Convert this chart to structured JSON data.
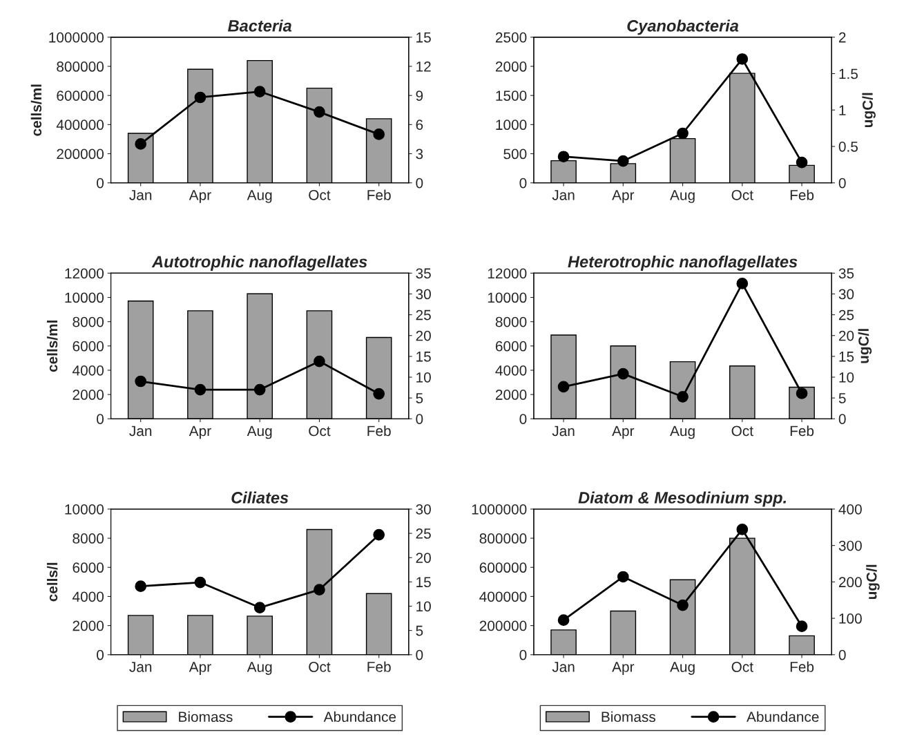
{
  "chart_data": [
    {
      "type": "bar",
      "title": "Bacteria",
      "ylabel": "cells/ml",
      "categories": [
        "Jan",
        "Apr",
        "Aug",
        "Oct",
        "Feb"
      ],
      "ylim": [
        0,
        1000000
      ],
      "yticks": [
        0,
        200000,
        400000,
        600000,
        800000,
        1000000
      ],
      "y2lim": [
        0,
        15
      ],
      "y2ticks": [
        0,
        3,
        6,
        9,
        12,
        15
      ],
      "grid": false,
      "series": [
        {
          "color": "#a0a0a0",
          "values": [
            340000,
            780000,
            840000,
            650000,
            440000
          ]
        },
        {
          "type": "line",
          "axis": "y2",
          "color": "#000000",
          "marker": "circle",
          "values": [
            4.0,
            8.8,
            9.4,
            7.3,
            5.0
          ]
        }
      ]
    },
    {
      "type": "bar",
      "title": "Cyanobacteria",
      "y2label": "ugC/l",
      "categories": [
        "Jan",
        "Apr",
        "Aug",
        "Oct",
        "Feb"
      ],
      "ylim": [
        0,
        2500
      ],
      "yticks": [
        0,
        500,
        1000,
        1500,
        2000,
        2500
      ],
      "y2lim": [
        0,
        2
      ],
      "y2ticks": [
        0,
        0.5,
        1,
        1.5,
        2
      ],
      "grid": false,
      "series": [
        {
          "color": "#a0a0a0",
          "values": [
            380,
            330,
            760,
            1880,
            300
          ]
        },
        {
          "type": "line",
          "axis": "y2",
          "color": "#000000",
          "marker": "circle",
          "values": [
            0.36,
            0.3,
            0.68,
            1.7,
            0.28
          ]
        }
      ]
    },
    {
      "type": "bar",
      "title": "Autotrophic nanoflagellates",
      "ylabel": "cells/ml",
      "categories": [
        "Jan",
        "Apr",
        "Aug",
        "Oct",
        "Feb"
      ],
      "ylim": [
        0,
        12000
      ],
      "yticks": [
        0,
        2000,
        4000,
        6000,
        8000,
        10000,
        12000
      ],
      "y2lim": [
        0,
        35
      ],
      "y2ticks": [
        0,
        5,
        10,
        15,
        20,
        25,
        30,
        35
      ],
      "grid": false,
      "series": [
        {
          "color": "#a0a0a0",
          "values": [
            9700,
            8900,
            10300,
            8900,
            6700
          ]
        },
        {
          "type": "line",
          "axis": "y2",
          "color": "#000000",
          "marker": "circle",
          "values": [
            9,
            7,
            7,
            13.8,
            6
          ]
        }
      ]
    },
    {
      "type": "bar",
      "title": "Heterotrophic nanoflagellates",
      "y2label": "ugC/l",
      "categories": [
        "Jan",
        "Apr",
        "Aug",
        "Oct",
        "Feb"
      ],
      "ylim": [
        0,
        12000
      ],
      "yticks": [
        0,
        2000,
        4000,
        6000,
        8000,
        10000,
        12000
      ],
      "y2lim": [
        0,
        35
      ],
      "y2ticks": [
        0,
        5,
        10,
        15,
        20,
        25,
        30,
        35
      ],
      "grid": false,
      "series": [
        {
          "color": "#a0a0a0",
          "values": [
            6900,
            6000,
            4700,
            4350,
            2600
          ]
        },
        {
          "type": "line",
          "axis": "y2",
          "color": "#000000",
          "marker": "circle",
          "values": [
            7.7,
            10.8,
            5.3,
            32.5,
            6.1
          ]
        }
      ]
    },
    {
      "type": "bar",
      "title": "Ciliates",
      "ylabel": "cells/l",
      "categories": [
        "Jan",
        "Apr",
        "Aug",
        "Oct",
        "Feb"
      ],
      "ylim": [
        0,
        10000
      ],
      "yticks": [
        0,
        2000,
        4000,
        6000,
        8000,
        10000
      ],
      "y2lim": [
        0,
        30
      ],
      "y2ticks": [
        0,
        5,
        10,
        15,
        20,
        25,
        30
      ],
      "grid": false,
      "legend": "bottom",
      "series": [
        {
          "name": "Biomass",
          "color": "#a0a0a0",
          "values": [
            2700,
            2700,
            2650,
            8600,
            4200
          ]
        },
        {
          "name": "Abundance",
          "type": "line",
          "axis": "y2",
          "color": "#000000",
          "marker": "circle",
          "values": [
            14.1,
            14.9,
            9.7,
            13.4,
            24.7
          ]
        }
      ]
    },
    {
      "type": "bar",
      "title": "Diatom & Mesodinium spp.",
      "y2label": "ugC/l",
      "categories": [
        "Jan",
        "Apr",
        "Aug",
        "Oct",
        "Feb"
      ],
      "ylim": [
        0,
        1000000
      ],
      "yticks": [
        0,
        200000,
        400000,
        600000,
        800000,
        1000000
      ],
      "y2lim": [
        0,
        400
      ],
      "y2ticks": [
        0,
        100,
        200,
        300,
        400
      ],
      "grid": false,
      "legend": "bottom",
      "series": [
        {
          "name": "Biomass",
          "color": "#a0a0a0",
          "values": [
            170000,
            300000,
            515000,
            800000,
            130000
          ]
        },
        {
          "name": "Abundance",
          "type": "line",
          "axis": "y2",
          "color": "#000000",
          "marker": "circle",
          "values": [
            95,
            214,
            136,
            344,
            78
          ]
        }
      ]
    }
  ]
}
